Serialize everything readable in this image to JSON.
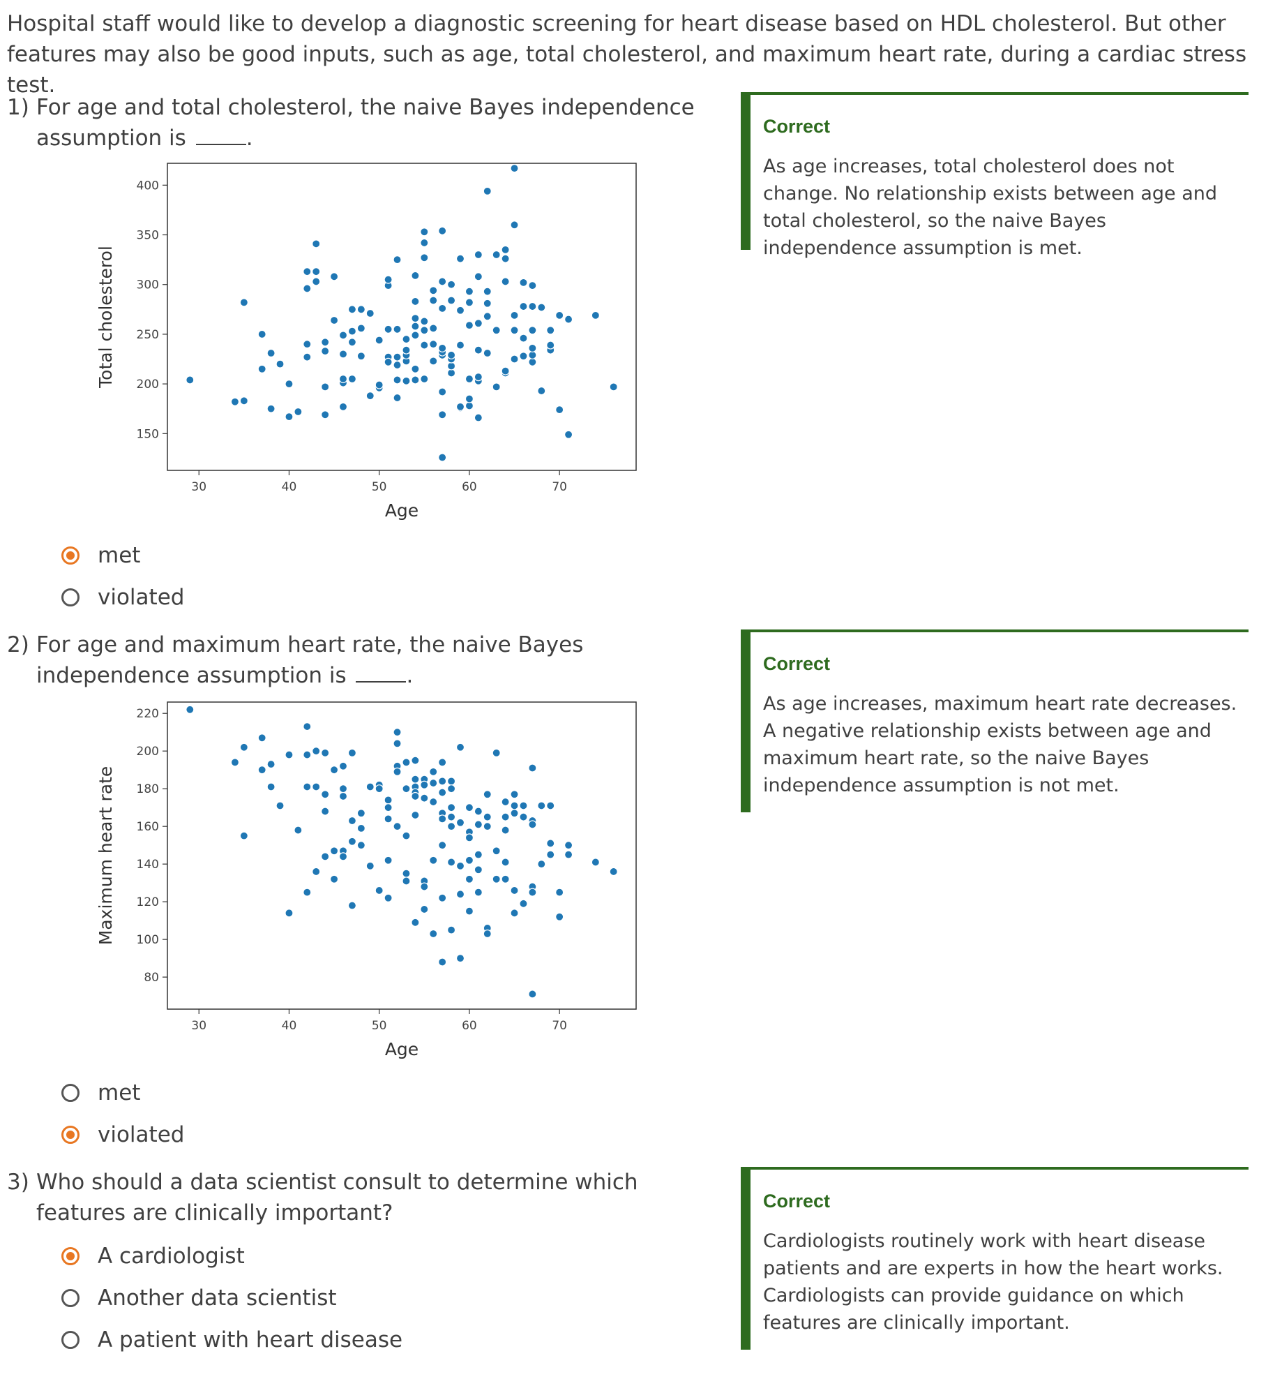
{
  "intro": "Hospital staff would like to develop a diagnostic screening for heart disease based on HDL cholesterol. But other features may also be good inputs, such as age, total cholesterol, and maximum heart rate, during a cardiac stress test.",
  "colors": {
    "accent": "#e87722",
    "correct_green": "#2e6b1f",
    "point_blue": "#1f77b4"
  },
  "questions": [
    {
      "number": "1)",
      "text_before": "For age and total cholesterol, the naive Bayes independence assumption is",
      "text_after": ".",
      "options": [
        {
          "label": "met",
          "selected": true
        },
        {
          "label": "violated",
          "selected": false
        }
      ],
      "feedback": {
        "title": "Correct",
        "text": "As age increases, total cholesterol does not change. No relationship exists between age and total cholesterol, so the naive Bayes independence assumption is met."
      }
    },
    {
      "number": "2)",
      "text_before": "For age and maximum heart rate, the naive Bayes independence assumption is",
      "text_after": ".",
      "options": [
        {
          "label": "met",
          "selected": false
        },
        {
          "label": "violated",
          "selected": true
        }
      ],
      "feedback": {
        "title": "Correct",
        "text": "As age increases, maximum heart rate decreases. A negative relationship exists between age and maximum heart rate, so the naive Bayes independence assumption is not met."
      }
    },
    {
      "number": "3)",
      "text_before": "Who should a data scientist consult to determine which features are clinically important?",
      "text_after": "",
      "options": [
        {
          "label": "A cardiologist",
          "selected": true
        },
        {
          "label": "Another data scientist",
          "selected": false
        },
        {
          "label": "A patient with heart disease",
          "selected": false
        }
      ],
      "feedback": {
        "title": "Correct",
        "text": "Cardiologists routinely work with heart disease patients and are experts in how the heart works. Cardiologists can provide guidance on which features are clinically important."
      }
    }
  ],
  "chart_data": [
    {
      "type": "scatter",
      "title": "",
      "xlabel": "Age",
      "ylabel": "Total cholesterol",
      "xlim": [
        26.5,
        78.5
      ],
      "ylim": [
        113,
        422
      ],
      "xticks": [
        30,
        40,
        50,
        60,
        70
      ],
      "yticks": [
        150,
        200,
        250,
        300,
        350,
        400
      ],
      "grid": false,
      "color": "#1f77b4",
      "points": [
        [
          29,
          204
        ],
        [
          34,
          182
        ],
        [
          35,
          183
        ],
        [
          35,
          282
        ],
        [
          37,
          250
        ],
        [
          37,
          215
        ],
        [
          38,
          175
        ],
        [
          38,
          231
        ],
        [
          39,
          220
        ],
        [
          40,
          200
        ],
        [
          40,
          167
        ],
        [
          41,
          172
        ],
        [
          42,
          227
        ],
        [
          42,
          240
        ],
        [
          42,
          296
        ],
        [
          42,
          313
        ],
        [
          43,
          303
        ],
        [
          43,
          313
        ],
        [
          43,
          341
        ],
        [
          44,
          169
        ],
        [
          44,
          197
        ],
        [
          44,
          233
        ],
        [
          44,
          242
        ],
        [
          45,
          264
        ],
        [
          45,
          308
        ],
        [
          46,
          177
        ],
        [
          46,
          201
        ],
        [
          46,
          205
        ],
        [
          46,
          230
        ],
        [
          46,
          249
        ],
        [
          47,
          205
        ],
        [
          47,
          242
        ],
        [
          47,
          253
        ],
        [
          47,
          275
        ],
        [
          48,
          228
        ],
        [
          48,
          256
        ],
        [
          48,
          275
        ],
        [
          49,
          188
        ],
        [
          49,
          271
        ],
        [
          50,
          196
        ],
        [
          50,
          199
        ],
        [
          50,
          244
        ],
        [
          51,
          227
        ],
        [
          51,
          222
        ],
        [
          51,
          255
        ],
        [
          51,
          299
        ],
        [
          51,
          305
        ],
        [
          52,
          186
        ],
        [
          52,
          204
        ],
        [
          52,
          219
        ],
        [
          52,
          227
        ],
        [
          52,
          255
        ],
        [
          52,
          325
        ],
        [
          53,
          203
        ],
        [
          53,
          223
        ],
        [
          53,
          229
        ],
        [
          53,
          234
        ],
        [
          53,
          245
        ],
        [
          54,
          204
        ],
        [
          54,
          215
        ],
        [
          54,
          249
        ],
        [
          54,
          266
        ],
        [
          54,
          258
        ],
        [
          54,
          283
        ],
        [
          54,
          309
        ],
        [
          55,
          205
        ],
        [
          55,
          239
        ],
        [
          55,
          254
        ],
        [
          55,
          263
        ],
        [
          55,
          327
        ],
        [
          55,
          342
        ],
        [
          55,
          353
        ],
        [
          56,
          223
        ],
        [
          56,
          240
        ],
        [
          56,
          256
        ],
        [
          56,
          284
        ],
        [
          56,
          294
        ],
        [
          57,
          126
        ],
        [
          57,
          169
        ],
        [
          57,
          192
        ],
        [
          57,
          229
        ],
        [
          57,
          232
        ],
        [
          57,
          236
        ],
        [
          57,
          276
        ],
        [
          57,
          303
        ],
        [
          57,
          354
        ],
        [
          58,
          211
        ],
        [
          58,
          218
        ],
        [
          58,
          225
        ],
        [
          58,
          229
        ],
        [
          58,
          284
        ],
        [
          58,
          300
        ],
        [
          59,
          176
        ],
        [
          59,
          177
        ],
        [
          59,
          239
        ],
        [
          59,
          274
        ],
        [
          59,
          326
        ],
        [
          60,
          178
        ],
        [
          60,
          185
        ],
        [
          60,
          205
        ],
        [
          60,
          259
        ],
        [
          60,
          282
        ],
        [
          60,
          293
        ],
        [
          61,
          166
        ],
        [
          61,
          203
        ],
        [
          61,
          207
        ],
        [
          61,
          234
        ],
        [
          61,
          261
        ],
        [
          61,
          308
        ],
        [
          61,
          330
        ],
        [
          62,
          231
        ],
        [
          62,
          268
        ],
        [
          62,
          281
        ],
        [
          62,
          293
        ],
        [
          62,
          394
        ],
        [
          63,
          197
        ],
        [
          63,
          254
        ],
        [
          63,
          330
        ],
        [
          64,
          211
        ],
        [
          64,
          213
        ],
        [
          64,
          303
        ],
        [
          64,
          326
        ],
        [
          64,
          335
        ],
        [
          65,
          225
        ],
        [
          65,
          254
        ],
        [
          65,
          269
        ],
        [
          65,
          360
        ],
        [
          65,
          417
        ],
        [
          66,
          228
        ],
        [
          66,
          246
        ],
        [
          66,
          278
        ],
        [
          66,
          302
        ],
        [
          67,
          222
        ],
        [
          67,
          229
        ],
        [
          67,
          236
        ],
        [
          67,
          254
        ],
        [
          67,
          278
        ],
        [
          67,
          299
        ],
        [
          68,
          193
        ],
        [
          68,
          277
        ],
        [
          69,
          234
        ],
        [
          69,
          239
        ],
        [
          69,
          254
        ],
        [
          70,
          174
        ],
        [
          70,
          269
        ],
        [
          71,
          149
        ],
        [
          71,
          265
        ],
        [
          74,
          269
        ],
        [
          76,
          197
        ]
      ]
    },
    {
      "type": "scatter",
      "title": "",
      "xlabel": "Age",
      "ylabel": "Maximum heart rate",
      "xlim": [
        26.5,
        78.5
      ],
      "ylim": [
        63,
        226
      ],
      "xticks": [
        30,
        40,
        50,
        60,
        70
      ],
      "yticks": [
        80,
        100,
        120,
        140,
        160,
        180,
        200,
        220
      ],
      "grid": false,
      "color": "#1f77b4",
      "points": [
        [
          29,
          222
        ],
        [
          34,
          194
        ],
        [
          35,
          202
        ],
        [
          35,
          155
        ],
        [
          37,
          207
        ],
        [
          37,
          190
        ],
        [
          38,
          193
        ],
        [
          38,
          181
        ],
        [
          39,
          171
        ],
        [
          40,
          114
        ],
        [
          40,
          198
        ],
        [
          41,
          158
        ],
        [
          42,
          213
        ],
        [
          42,
          198
        ],
        [
          42,
          181
        ],
        [
          42,
          125
        ],
        [
          43,
          181
        ],
        [
          43,
          200
        ],
        [
          43,
          136
        ],
        [
          44,
          199
        ],
        [
          44,
          177
        ],
        [
          44,
          168
        ],
        [
          44,
          144
        ],
        [
          45,
          190
        ],
        [
          45,
          147
        ],
        [
          45,
          132
        ],
        [
          46,
          192
        ],
        [
          46,
          180
        ],
        [
          46,
          176
        ],
        [
          46,
          147
        ],
        [
          46,
          144
        ],
        [
          47,
          199
        ],
        [
          47,
          163
        ],
        [
          47,
          152
        ],
        [
          47,
          118
        ],
        [
          48,
          167
        ],
        [
          48,
          159
        ],
        [
          48,
          150
        ],
        [
          49,
          139
        ],
        [
          49,
          181
        ],
        [
          50,
          182
        ],
        [
          50,
          180
        ],
        [
          50,
          126
        ],
        [
          51,
          174
        ],
        [
          51,
          170
        ],
        [
          51,
          164
        ],
        [
          51,
          122
        ],
        [
          51,
          142
        ],
        [
          52,
          210
        ],
        [
          52,
          204
        ],
        [
          52,
          192
        ],
        [
          52,
          189
        ],
        [
          52,
          160
        ],
        [
          53,
          194
        ],
        [
          53,
          155
        ],
        [
          53,
          135
        ],
        [
          53,
          131
        ],
        [
          53,
          180
        ],
        [
          54,
          195
        ],
        [
          54,
          185
        ],
        [
          54,
          181
        ],
        [
          54,
          178
        ],
        [
          54,
          176
        ],
        [
          54,
          166
        ],
        [
          54,
          109
        ],
        [
          55,
          185
        ],
        [
          55,
          182
        ],
        [
          55,
          175
        ],
        [
          55,
          131
        ],
        [
          55,
          128
        ],
        [
          55,
          116
        ],
        [
          56,
          189
        ],
        [
          56,
          183
        ],
        [
          56,
          173
        ],
        [
          56,
          142
        ],
        [
          56,
          103
        ],
        [
          57,
          194
        ],
        [
          57,
          184
        ],
        [
          57,
          178
        ],
        [
          57,
          167
        ],
        [
          57,
          164
        ],
        [
          57,
          150
        ],
        [
          57,
          122
        ],
        [
          57,
          88
        ],
        [
          58,
          184
        ],
        [
          58,
          180
        ],
        [
          58,
          170
        ],
        [
          58,
          165
        ],
        [
          58,
          160
        ],
        [
          58,
          141
        ],
        [
          58,
          105
        ],
        [
          59,
          202
        ],
        [
          59,
          162
        ],
        [
          59,
          139
        ],
        [
          59,
          124
        ],
        [
          59,
          90
        ],
        [
          60,
          170
        ],
        [
          60,
          157
        ],
        [
          60,
          154
        ],
        [
          60,
          142
        ],
        [
          60,
          132
        ],
        [
          60,
          115
        ],
        [
          61,
          168
        ],
        [
          61,
          161
        ],
        [
          61,
          145
        ],
        [
          61,
          137
        ],
        [
          61,
          125
        ],
        [
          62,
          177
        ],
        [
          62,
          165
        ],
        [
          62,
          160
        ],
        [
          62,
          106
        ],
        [
          62,
          103
        ],
        [
          63,
          199
        ],
        [
          63,
          147
        ],
        [
          63,
          132
        ],
        [
          64,
          173
        ],
        [
          64,
          165
        ],
        [
          64,
          158
        ],
        [
          64,
          141
        ],
        [
          64,
          132
        ],
        [
          65,
          177
        ],
        [
          65,
          171
        ],
        [
          65,
          167
        ],
        [
          65,
          126
        ],
        [
          65,
          114
        ],
        [
          66,
          171
        ],
        [
          66,
          165
        ],
        [
          66,
          119
        ],
        [
          67,
          191
        ],
        [
          67,
          163
        ],
        [
          67,
          161
        ],
        [
          67,
          128
        ],
        [
          67,
          125
        ],
        [
          67,
          71
        ],
        [
          68,
          171
        ],
        [
          68,
          140
        ],
        [
          69,
          171
        ],
        [
          69,
          151
        ],
        [
          69,
          145
        ],
        [
          70,
          125
        ],
        [
          70,
          112
        ],
        [
          71,
          150
        ],
        [
          71,
          145
        ],
        [
          74,
          141
        ],
        [
          76,
          136
        ]
      ]
    }
  ]
}
